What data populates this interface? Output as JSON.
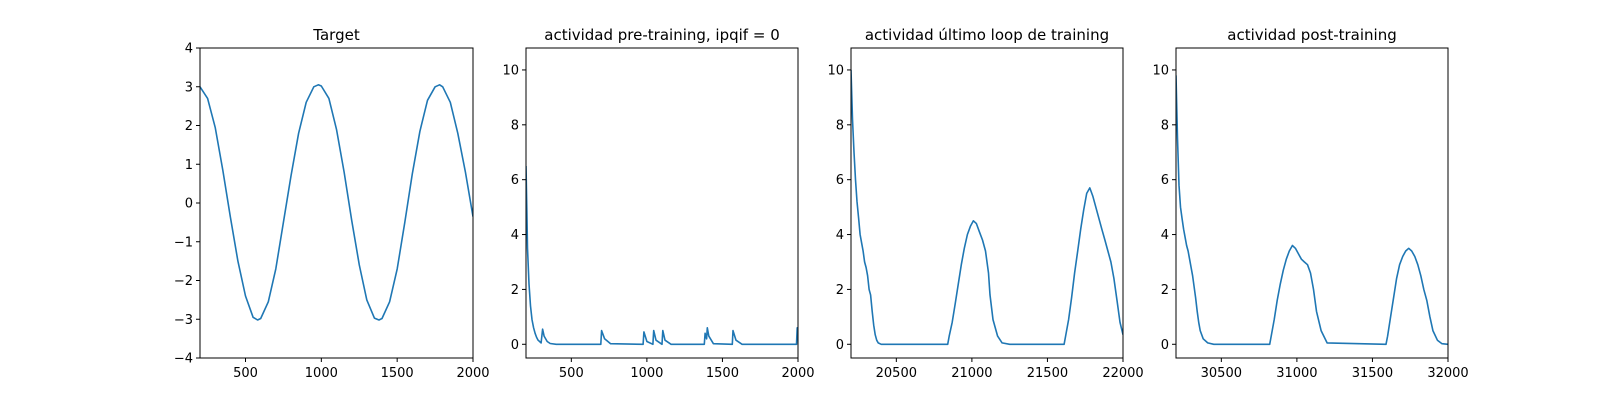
{
  "chart_data": [
    {
      "type": "line",
      "title": "Target",
      "color": "#1f77b4",
      "xlim": [
        200,
        2000
      ],
      "ylim": [
        -4,
        4
      ],
      "xticks": [
        500,
        1000,
        1500,
        2000
      ],
      "yticks": [
        -4,
        -3,
        -2,
        -1,
        0,
        1,
        2,
        3,
        4
      ],
      "x": [
        200,
        250,
        300,
        350,
        400,
        450,
        500,
        550,
        580,
        600,
        650,
        700,
        750,
        800,
        850,
        900,
        950,
        980,
        1000,
        1050,
        1100,
        1150,
        1200,
        1250,
        1300,
        1350,
        1380,
        1400,
        1450,
        1500,
        1550,
        1600,
        1650,
        1700,
        1750,
        1780,
        1800,
        1850,
        1900,
        1950,
        2000
      ],
      "y": [
        3.0,
        2.7,
        1.95,
        0.85,
        -0.35,
        -1.5,
        -2.4,
        -2.95,
        -3.02,
        -2.98,
        -2.55,
        -1.7,
        -0.5,
        0.7,
        1.8,
        2.6,
        3.0,
        3.05,
        3.02,
        2.7,
        1.9,
        0.8,
        -0.45,
        -1.6,
        -2.5,
        -2.97,
        -3.02,
        -2.98,
        -2.55,
        -1.7,
        -0.5,
        0.75,
        1.85,
        2.65,
        3.0,
        3.05,
        3.0,
        2.6,
        1.8,
        0.8,
        -0.35
      ]
    },
    {
      "type": "line",
      "title": "actividad pre-training, ipqif = 0",
      "color": "#1f77b4",
      "xlim": [
        200,
        2000
      ],
      "ylim": [
        -0.5,
        10.8
      ],
      "xticks": [
        500,
        1000,
        1500,
        2000
      ],
      "yticks": [
        0,
        2,
        4,
        6,
        8,
        10
      ],
      "x": [
        200,
        205,
        210,
        220,
        230,
        240,
        250,
        260,
        270,
        280,
        290,
        300,
        310,
        320,
        340,
        360,
        400,
        695,
        700,
        720,
        760,
        975,
        980,
        1000,
        1040,
        1045,
        1060,
        1100,
        1105,
        1120,
        1160,
        1380,
        1385,
        1395,
        1400,
        1410,
        1440,
        1565,
        1570,
        1590,
        1630,
        1990,
        1995,
        2000
      ],
      "y": [
        6.5,
        5.0,
        3.5,
        2.2,
        1.4,
        0.9,
        0.6,
        0.4,
        0.25,
        0.15,
        0.1,
        0.05,
        0.55,
        0.3,
        0.1,
        0.03,
        0.0,
        0.0,
        0.5,
        0.2,
        0.02,
        0.0,
        0.45,
        0.1,
        0.0,
        0.5,
        0.15,
        0.0,
        0.5,
        0.15,
        0.0,
        0.0,
        0.4,
        0.2,
        0.6,
        0.3,
        0.02,
        0.0,
        0.5,
        0.15,
        0.0,
        0.0,
        0.6,
        0.5
      ]
    },
    {
      "type": "line",
      "title": "actividad último loop de training",
      "color": "#1f77b4",
      "xlim": [
        20200,
        22000
      ],
      "ylim": [
        -0.5,
        10.8
      ],
      "xticks": [
        20500,
        21000,
        21500,
        22000
      ],
      "yticks": [
        0,
        2,
        4,
        6,
        8,
        10
      ],
      "x": [
        20200,
        20210,
        20220,
        20230,
        20240,
        20250,
        20260,
        20270,
        20280,
        20290,
        20300,
        20310,
        20320,
        20330,
        20340,
        20350,
        20360,
        20370,
        20380,
        20400,
        20430,
        20460,
        20500,
        20840,
        20850,
        20870,
        20890,
        20910,
        20930,
        20950,
        20970,
        20990,
        21010,
        21030,
        21050,
        21070,
        21090,
        21110,
        21120,
        21140,
        21170,
        21200,
        21250,
        21610,
        21620,
        21640,
        21660,
        21680,
        21700,
        21720,
        21740,
        21760,
        21780,
        21800,
        21820,
        21840,
        21860,
        21880,
        21900,
        21920,
        21940,
        21960,
        21980,
        22000
      ],
      "y": [
        10.0,
        8.2,
        7.0,
        6.0,
        5.2,
        4.6,
        4.0,
        3.7,
        3.4,
        3.0,
        2.8,
        2.5,
        2.0,
        1.8,
        1.2,
        0.7,
        0.35,
        0.15,
        0.05,
        0.0,
        0.0,
        0.0,
        0.0,
        0.0,
        0.3,
        0.8,
        1.5,
        2.2,
        2.9,
        3.5,
        4.0,
        4.3,
        4.5,
        4.4,
        4.1,
        3.8,
        3.4,
        2.6,
        1.8,
        0.9,
        0.3,
        0.05,
        0.0,
        0.0,
        0.3,
        0.9,
        1.7,
        2.6,
        3.4,
        4.2,
        4.9,
        5.5,
        5.7,
        5.4,
        5.0,
        4.6,
        4.2,
        3.8,
        3.4,
        3.0,
        2.4,
        1.6,
        0.8,
        0.35
      ]
    },
    {
      "type": "line",
      "title": "actividad post-training",
      "color": "#1f77b4",
      "xlim": [
        30200,
        32000
      ],
      "ylim": [
        -0.5,
        10.8
      ],
      "xticks": [
        30500,
        31000,
        31500,
        32000
      ],
      "yticks": [
        0,
        2,
        4,
        6,
        8,
        10
      ],
      "x": [
        30200,
        30210,
        30220,
        30230,
        30240,
        30250,
        30260,
        30270,
        30280,
        30290,
        30300,
        30310,
        30320,
        30330,
        30340,
        30350,
        30360,
        30380,
        30410,
        30450,
        30820,
        30830,
        30850,
        30870,
        30890,
        30910,
        30930,
        30950,
        30970,
        30990,
        31010,
        31030,
        31050,
        31070,
        31090,
        31110,
        31130,
        31160,
        31200,
        31590,
        31600,
        31620,
        31640,
        31660,
        31680,
        31700,
        31720,
        31740,
        31760,
        31780,
        31800,
        31820,
        31840,
        31860,
        31880,
        31900,
        31930,
        31960,
        32000
      ],
      "y": [
        9.8,
        7.5,
        5.8,
        5.0,
        4.6,
        4.2,
        3.9,
        3.6,
        3.4,
        3.1,
        2.8,
        2.5,
        2.1,
        1.7,
        1.2,
        0.8,
        0.5,
        0.2,
        0.05,
        0.0,
        0.0,
        0.3,
        0.9,
        1.6,
        2.2,
        2.7,
        3.1,
        3.4,
        3.6,
        3.5,
        3.3,
        3.1,
        3.0,
        2.9,
        2.6,
        2.0,
        1.2,
        0.5,
        0.05,
        0.0,
        0.3,
        1.0,
        1.7,
        2.4,
        2.9,
        3.2,
        3.4,
        3.5,
        3.4,
        3.2,
        2.9,
        2.5,
        2.0,
        1.6,
        1.0,
        0.5,
        0.15,
        0.02,
        0.0
      ]
    }
  ]
}
